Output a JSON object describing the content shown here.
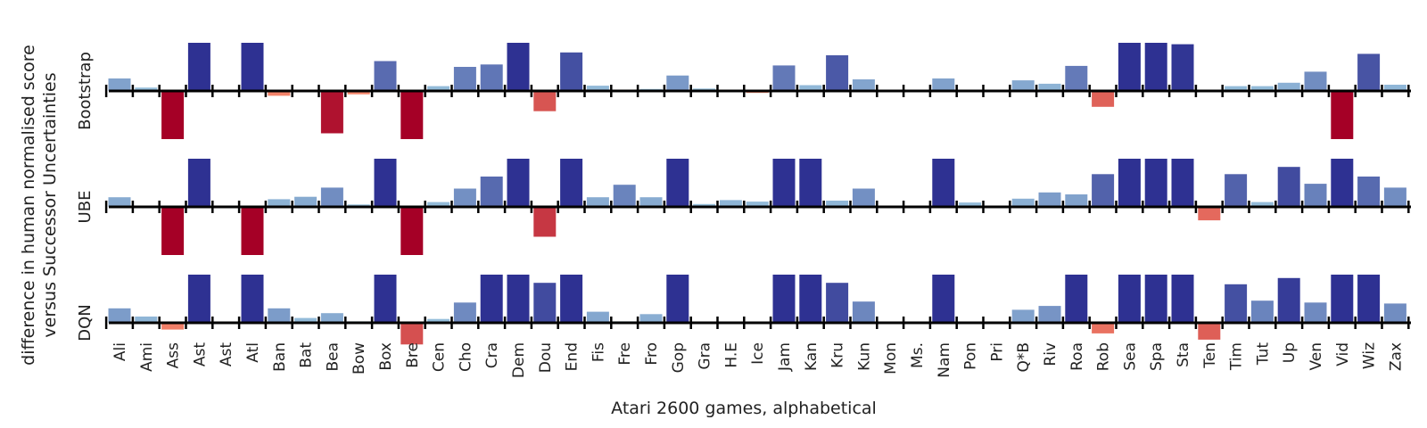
{
  "chart_data": {
    "type": "bar",
    "xlabel": "Atari 2600 games, alphabetical",
    "ylabel": [
      "difference in human normalised score",
      "versus Successor Uncertainties"
    ],
    "ylim": [
      -1,
      1
    ],
    "categories": [
      "Ali",
      "Ami",
      "Ass",
      "Ast",
      "Ast",
      "Atl",
      "Ban",
      "Bat",
      "Bea",
      "Bow",
      "Box",
      "Bre",
      "Cen",
      "Cho",
      "Cra",
      "Dem",
      "Dou",
      "End",
      "Fis",
      "Fre",
      "Fro",
      "Gop",
      "Gra",
      "H.E",
      "Ice",
      "Jam",
      "Kan",
      "Kru",
      "Kun",
      "Mon",
      "Ms.",
      "Nam",
      "Pon",
      "Pri",
      "Q*B",
      "Riv",
      "Roa",
      "Rob",
      "Sea",
      "Spa",
      "Sta",
      "Ten",
      "Tim",
      "Tut",
      "Up",
      "Ven",
      "Vid",
      "Wiz",
      "Zax"
    ],
    "series": [
      {
        "name": "Bootstrap",
        "values": [
          0.26,
          0.07,
          -1,
          1,
          0,
          1,
          -0.1,
          0,
          -0.88,
          -0.07,
          0.62,
          -1,
          0.1,
          0.5,
          0.55,
          1,
          -0.42,
          0.8,
          0.11,
          0,
          0.04,
          0.32,
          0.05,
          0,
          -0.04,
          0.53,
          0.12,
          0.74,
          0.24,
          0,
          0,
          0.26,
          0,
          0,
          0.22,
          0.15,
          0.52,
          -0.33,
          1,
          1,
          0.97,
          0,
          0.1,
          0.1,
          0.17,
          0.4,
          -1,
          0.77,
          0.13
        ]
      },
      {
        "name": "UBE",
        "values": [
          0.2,
          0,
          -1,
          1,
          0,
          -1,
          0.16,
          0.21,
          0.4,
          0.05,
          1,
          -1,
          0.1,
          0.38,
          0.63,
          1,
          -0.62,
          1,
          0.2,
          0.46,
          0.2,
          1,
          0.06,
          0.14,
          0.11,
          1,
          1,
          0.13,
          0.38,
          0,
          0,
          1,
          0.09,
          0,
          0.17,
          0.3,
          0.26,
          0.68,
          1,
          1,
          1,
          -0.28,
          0.68,
          0.1,
          0.83,
          0.48,
          1,
          0.63,
          0.4
        ]
      },
      {
        "name": "DQN",
        "values": [
          0.3,
          0.13,
          -0.14,
          1,
          0,
          1,
          0.3,
          0.1,
          0.2,
          0.03,
          1,
          -0.45,
          0.08,
          0.42,
          1,
          1,
          0.83,
          1,
          0.23,
          0.03,
          0.18,
          1,
          0,
          0,
          0,
          1,
          1,
          0.83,
          0.44,
          0,
          0,
          1,
          0,
          0,
          0.27,
          0.35,
          1,
          -0.22,
          1,
          1,
          1,
          -0.35,
          0.8,
          0.46,
          0.93,
          0.42,
          1,
          1,
          0.4
        ]
      }
    ],
    "colors": {
      "pos_low": "#9ecae1",
      "pos_high": "#2e3192",
      "neg_low": "#fc9272",
      "neg_high": "#a50026",
      "axis": "#000000"
    }
  }
}
